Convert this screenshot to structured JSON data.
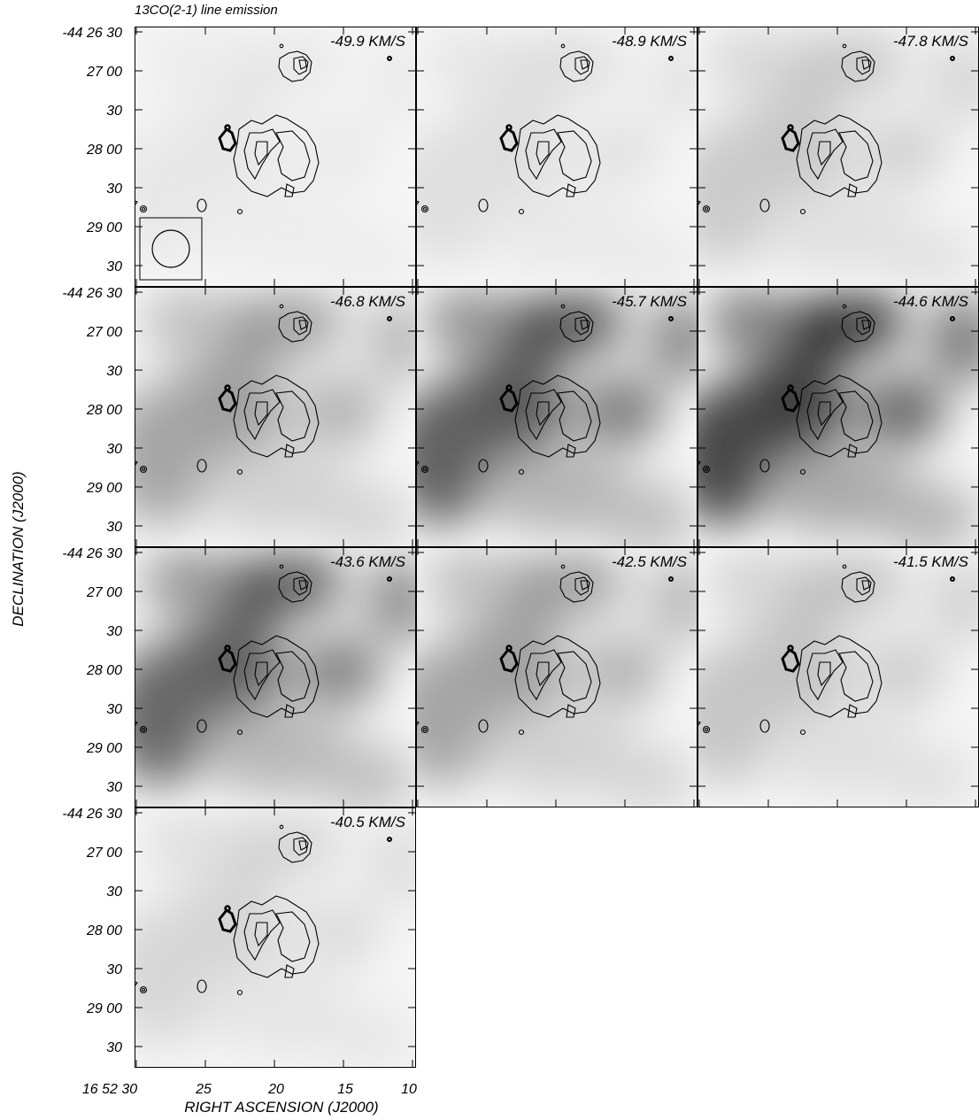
{
  "title": "13CO(2-1) line emission",
  "ylabel": "DECLINATION (J2000)",
  "xlabel": "RIGHT ASCENSION (J2000)",
  "dec_ticks": [
    "-44 26 30",
    "27 00",
    "30",
    "28 00",
    "30",
    "29 00",
    "30"
  ],
  "ra_ticks": [
    "16 52 30",
    "25",
    "20",
    "15",
    "10"
  ],
  "channels": [
    {
      "velocity": "-49.9 KM/S",
      "intensity": 0.05,
      "beam": true
    },
    {
      "velocity": "-48.9 KM/S",
      "intensity": 0.1,
      "beam": false
    },
    {
      "velocity": "-47.8 KM/S",
      "intensity": 0.22,
      "beam": false
    },
    {
      "velocity": "-46.8 KM/S",
      "intensity": 0.45,
      "beam": false
    },
    {
      "velocity": "-45.7 KM/S",
      "intensity": 0.85,
      "beam": false
    },
    {
      "velocity": "-44.6 KM/S",
      "intensity": 1.0,
      "beam": false
    },
    {
      "velocity": "-43.6 KM/S",
      "intensity": 0.8,
      "beam": false
    },
    {
      "velocity": "-42.5 KM/S",
      "intensity": 0.45,
      "beam": false
    },
    {
      "velocity": "-41.5 KM/S",
      "intensity": 0.25,
      "beam": false
    },
    {
      "velocity": "-40.5 KM/S",
      "intensity": 0.15,
      "beam": false
    }
  ]
}
